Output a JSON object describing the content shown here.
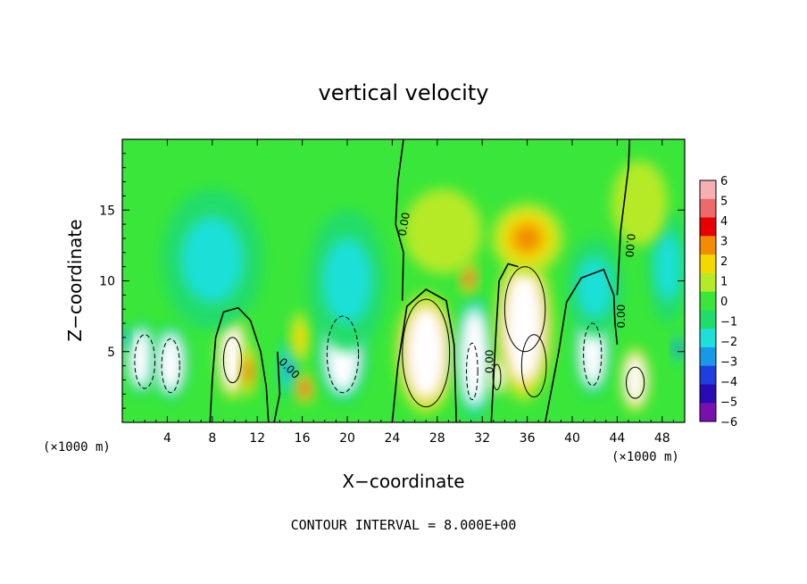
{
  "chart_data": {
    "type": "heatmap",
    "title": "vertical velocity",
    "xlabel": "X−coordinate",
    "ylabel": "Z−coordinate",
    "x_unit_left": "(×1000 m)",
    "x_unit_right": "(×1000 m)",
    "xlim": [
      0,
      50
    ],
    "ylim": [
      0,
      20
    ],
    "x_ticks": [
      4,
      8,
      12,
      16,
      20,
      24,
      28,
      32,
      36,
      40,
      44,
      48
    ],
    "y_ticks": [
      5,
      10,
      15
    ],
    "contour_interval_text": "CONTOUR INTERVAL = 8.000E+00",
    "zero_contour_label": "0.00",
    "colorbar": {
      "labels": [
        "6",
        "5",
        "4",
        "3",
        "2",
        "1",
        "0",
        "−1",
        "−2",
        "−3",
        "−4",
        "−5",
        "−6"
      ],
      "colors": [
        "#f7b0b0",
        "#ee6a6a",
        "#e60000",
        "#f28c00",
        "#f5d800",
        "#b6ea28",
        "#3ae63a",
        "#20dc6a",
        "#1ee0d8",
        "#1a98e8",
        "#1e3ee0",
        "#2a0ab4",
        "#7a0fb0"
      ]
    },
    "cells": [
      {
        "x": 1.7,
        "z": 4.5,
        "a": 1.5,
        "b": 2.6,
        "v": -6
      },
      {
        "x": 4.3,
        "z": 4.2,
        "a": 1.6,
        "b": 2.7,
        "v": -6
      },
      {
        "x": 0.3,
        "z": 6.0,
        "a": 0.4,
        "b": 0.8,
        "v": -4
      },
      {
        "x": 9.8,
        "z": 4.6,
        "a": 1.4,
        "b": 3.0,
        "v": 6
      },
      {
        "x": 11.2,
        "z": 3.6,
        "a": 0.7,
        "b": 1.8,
        "v": 4
      },
      {
        "x": 14.8,
        "z": 3.8,
        "a": 0.9,
        "b": 2.2,
        "v": -3
      },
      {
        "x": 15.8,
        "z": 6.0,
        "a": 0.9,
        "b": 1.8,
        "v": 2
      },
      {
        "x": 16.2,
        "z": 2.4,
        "a": 0.9,
        "b": 1.1,
        "v": 5
      },
      {
        "x": 19.6,
        "z": 4.8,
        "a": 2.2,
        "b": 3.5,
        "v": -6
      },
      {
        "x": 27.0,
        "z": 4.9,
        "a": 2.7,
        "b": 4.3,
        "v": 6
      },
      {
        "x": 31.3,
        "z": 4.6,
        "a": 1.8,
        "b": 4.5,
        "v": -6
      },
      {
        "x": 30.8,
        "z": 10.2,
        "a": 0.8,
        "b": 1.2,
        "v": 5
      },
      {
        "x": 35.7,
        "z": 6.8,
        "a": 2.6,
        "b": 5.3,
        "v": 6
      },
      {
        "x": 33.4,
        "z": 3.3,
        "a": 0.8,
        "b": 1.3,
        "v": 6
      },
      {
        "x": 36.0,
        "z": 13.0,
        "a": 3.2,
        "b": 2.5,
        "v": 3
      },
      {
        "x": 41.8,
        "z": 5.0,
        "a": 1.6,
        "b": 3.2,
        "v": -6
      },
      {
        "x": 45.6,
        "z": 3.0,
        "a": 1.3,
        "b": 2.3,
        "v": 6
      },
      {
        "x": 49.4,
        "z": 5.2,
        "a": 0.5,
        "b": 1.0,
        "v": -5
      },
      {
        "x": 8.0,
        "z": 11.5,
        "a": 4.5,
        "b": 5.0,
        "v": -2
      },
      {
        "x": 20.0,
        "z": 10.0,
        "a": 3.5,
        "b": 5.0,
        "v": -2
      },
      {
        "x": 42.0,
        "z": 9.5,
        "a": 2.5,
        "b": 3.5,
        "v": -2
      },
      {
        "x": 48.5,
        "z": 11.0,
        "a": 1.8,
        "b": 4.0,
        "v": -2
      },
      {
        "x": 28.5,
        "z": 13.5,
        "a": 3.5,
        "b": 3.0,
        "v": 1
      },
      {
        "x": 46.0,
        "z": 15.5,
        "a": 2.5,
        "b": 3.0,
        "v": 1
      }
    ],
    "zero_contours": [
      [
        [
          7.8,
          0
        ],
        [
          8.0,
          3
        ],
        [
          8.3,
          6
        ],
        [
          9.0,
          7.8
        ],
        [
          10.3,
          8.1
        ],
        [
          11.4,
          7.2
        ],
        [
          12.3,
          5.0
        ],
        [
          12.8,
          2.5
        ],
        [
          13.0,
          0
        ]
      ],
      [
        [
          24.0,
          0
        ],
        [
          24.5,
          4
        ],
        [
          25.3,
          8.2
        ],
        [
          27.0,
          9.4
        ],
        [
          28.8,
          8.6
        ],
        [
          29.5,
          5.5
        ],
        [
          29.6,
          2.5
        ],
        [
          29.7,
          0
        ]
      ],
      [
        [
          24.9,
          8.6
        ],
        [
          25.0,
          12
        ],
        [
          24.3,
          14
        ],
        [
          24.5,
          17
        ],
        [
          25.0,
          20
        ]
      ],
      [
        [
          37.6,
          0
        ],
        [
          38.8,
          5
        ],
        [
          39.5,
          8.5
        ],
        [
          40.8,
          10.2
        ],
        [
          42.8,
          10.8
        ],
        [
          43.7,
          9.0
        ],
        [
          43.8,
          7.0
        ],
        [
          44.0,
          5.5
        ]
      ],
      [
        [
          44.0,
          9.0
        ],
        [
          44.3,
          13.5
        ],
        [
          45.0,
          18
        ],
        [
          45.1,
          20
        ]
      ],
      [
        [
          32.8,
          0
        ],
        [
          33.2,
          6
        ],
        [
          33.5,
          10.0
        ],
        [
          34.3,
          11.2
        ],
        [
          35.2,
          11.0
        ]
      ],
      [
        [
          13.5,
          0
        ],
        [
          14.0,
          2
        ],
        [
          13.8,
          5
        ]
      ]
    ],
    "solid_rings": [
      {
        "x": 27.0,
        "z": 4.9,
        "a": 2.1,
        "b": 3.8
      },
      {
        "x": 36.6,
        "z": 4.0,
        "a": 1.1,
        "b": 2.2
      },
      {
        "x": 35.8,
        "z": 8.0,
        "a": 1.8,
        "b": 3.0
      },
      {
        "x": 9.8,
        "z": 4.4,
        "a": 0.8,
        "b": 1.6
      },
      {
        "x": 45.6,
        "z": 2.8,
        "a": 0.8,
        "b": 1.1
      },
      {
        "x": 33.3,
        "z": 3.2,
        "a": 0.35,
        "b": 0.9
      }
    ],
    "dashed_rings": [
      {
        "x": 2.0,
        "z": 4.3,
        "a": 0.9,
        "b": 1.9
      },
      {
        "x": 4.3,
        "z": 4.0,
        "a": 0.8,
        "b": 1.9
      },
      {
        "x": 19.6,
        "z": 4.8,
        "a": 1.4,
        "b": 2.7
      },
      {
        "x": 31.1,
        "z": 3.6,
        "a": 0.5,
        "b": 2.0
      },
      {
        "x": 41.8,
        "z": 4.8,
        "a": 0.8,
        "b": 2.2
      }
    ],
    "contour_label_positions": [
      {
        "x": 25.1,
        "z": 14.0,
        "rot": -80
      },
      {
        "x": 14.8,
        "z": 3.8,
        "rot": 45
      },
      {
        "x": 32.7,
        "z": 4.3,
        "rot": -90
      },
      {
        "x": 44.4,
        "z": 7.5,
        "rot": -90
      },
      {
        "x": 45.1,
        "z": 12.5,
        "rot": 95
      }
    ]
  }
}
